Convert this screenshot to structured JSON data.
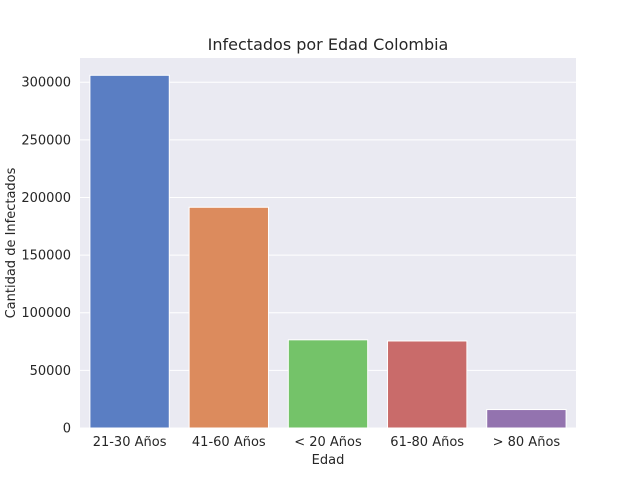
{
  "chart_data": {
    "type": "bar",
    "title": "Infectados por Edad Colombia",
    "xlabel": "Edad",
    "ylabel": "Cantidad de Infectados",
    "categories": [
      "21-30 Años",
      "41-60 Años",
      "< 20 Años",
      "61-80 Años",
      "> 80 Años"
    ],
    "values": [
      306000,
      191500,
      76500,
      75500,
      16000
    ],
    "ylim": [
      0,
      321000
    ],
    "yticks": [
      0,
      50000,
      100000,
      150000,
      200000,
      250000,
      300000
    ],
    "grid": true,
    "colors": [
      "#5a7ec3",
      "#dc8b5d",
      "#74c369",
      "#c96b6a",
      "#9373af"
    ],
    "background": "#eaeaf2",
    "grid_color": "#ffffff"
  }
}
